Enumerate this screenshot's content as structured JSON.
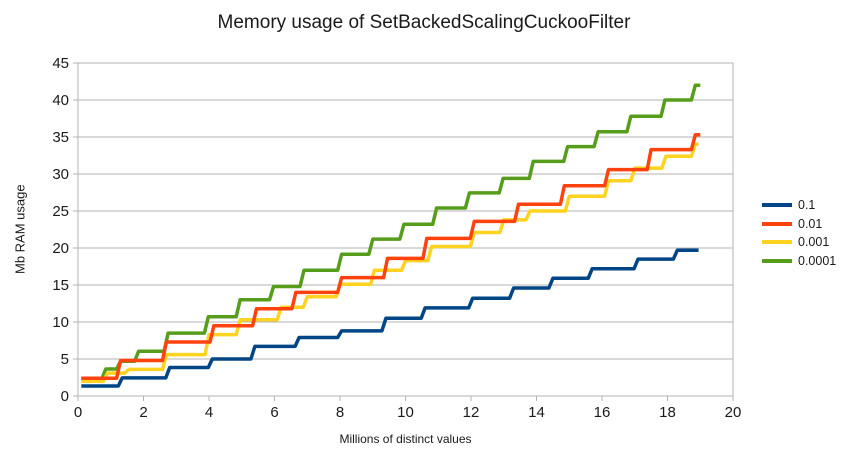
{
  "chart_data": {
    "type": "line",
    "line_style": "step",
    "title": "Memory usage of SetBackedScalingCuckooFilter",
    "xlabel": "Millions of distinct values",
    "ylabel": "Mb RAM usage",
    "xlim": [
      0,
      20
    ],
    "ylim": [
      0,
      45
    ],
    "x_ticks": [
      0,
      2,
      4,
      6,
      8,
      10,
      12,
      14,
      16,
      18,
      20
    ],
    "y_ticks": [
      0,
      5,
      10,
      15,
      20,
      25,
      30,
      35,
      40,
      45
    ],
    "grid": "horizontal",
    "legend_position": "right",
    "axis_color": "#b3b3b3",
    "text_color": "#1a1a1a",
    "series": [
      {
        "name": "0.1",
        "color": "#004586",
        "end_x": 18.95,
        "steps": [
          [
            0.1,
            1.35
          ],
          [
            1.35,
            2.45
          ],
          [
            2.8,
            3.85
          ],
          [
            4.1,
            5.0
          ],
          [
            5.4,
            6.7
          ],
          [
            6.75,
            7.9
          ],
          [
            8.05,
            8.8
          ],
          [
            9.4,
            10.5
          ],
          [
            10.6,
            11.9
          ],
          [
            12.05,
            13.2
          ],
          [
            13.3,
            14.6
          ],
          [
            14.5,
            15.9
          ],
          [
            15.7,
            17.2
          ],
          [
            17.1,
            18.5
          ],
          [
            18.3,
            19.7
          ]
        ]
      },
      {
        "name": "0.01",
        "color": "#FF420E",
        "end_x": 19.0,
        "steps": [
          [
            0.1,
            2.4
          ],
          [
            1.3,
            4.8
          ],
          [
            2.7,
            7.3
          ],
          [
            4.15,
            9.5
          ],
          [
            5.45,
            11.8
          ],
          [
            6.65,
            14.0
          ],
          [
            8.05,
            16.0
          ],
          [
            9.45,
            18.6
          ],
          [
            10.65,
            21.3
          ],
          [
            12.1,
            23.6
          ],
          [
            13.45,
            25.9
          ],
          [
            14.85,
            28.4
          ],
          [
            16.2,
            30.6
          ],
          [
            17.5,
            33.3
          ],
          [
            18.85,
            35.3
          ]
        ]
      },
      {
        "name": "0.001",
        "color": "#FFD320",
        "end_x": 18.95,
        "steps": [
          [
            0.1,
            2.0
          ],
          [
            0.9,
            3.1
          ],
          [
            1.55,
            3.6
          ],
          [
            2.7,
            5.6
          ],
          [
            4.0,
            8.3
          ],
          [
            4.95,
            10.3
          ],
          [
            6.2,
            12.0
          ],
          [
            7.0,
            13.4
          ],
          [
            8.0,
            15.1
          ],
          [
            9.05,
            17.0
          ],
          [
            10.0,
            18.3
          ],
          [
            10.8,
            20.2
          ],
          [
            12.1,
            22.1
          ],
          [
            13.0,
            23.8
          ],
          [
            13.8,
            25.0
          ],
          [
            15.0,
            27.0
          ],
          [
            16.2,
            29.1
          ],
          [
            17.0,
            30.8
          ],
          [
            17.95,
            32.4
          ],
          [
            18.85,
            34.0
          ]
        ]
      },
      {
        "name": "0.0001",
        "color": "#579D1C",
        "end_x": 19.0,
        "steps": [
          [
            0.1,
            2.35
          ],
          [
            0.85,
            3.65
          ],
          [
            1.3,
            4.7
          ],
          [
            1.85,
            6.05
          ],
          [
            2.75,
            8.5
          ],
          [
            3.98,
            10.7
          ],
          [
            4.95,
            13.0
          ],
          [
            5.97,
            14.8
          ],
          [
            6.9,
            17.0
          ],
          [
            8.05,
            19.15
          ],
          [
            9.0,
            21.2
          ],
          [
            9.95,
            23.2
          ],
          [
            10.95,
            25.4
          ],
          [
            11.95,
            27.45
          ],
          [
            12.98,
            29.4
          ],
          [
            13.9,
            31.7
          ],
          [
            14.95,
            33.7
          ],
          [
            15.88,
            35.7
          ],
          [
            16.88,
            37.8
          ],
          [
            17.92,
            40.0
          ],
          [
            18.85,
            42.0
          ]
        ]
      }
    ],
    "draw_order": [
      3,
      2,
      1,
      0
    ]
  }
}
